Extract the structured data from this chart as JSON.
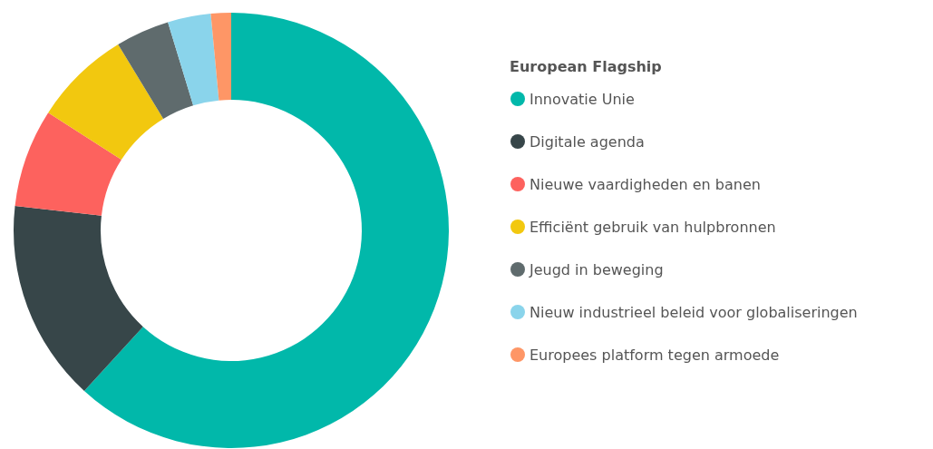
{
  "chart_data": {
    "type": "donut",
    "legend_title": "European Flagship",
    "legend": "right",
    "categories": [
      "Innovatie Unie",
      "Digitale agenda",
      "Nieuwe vaardigheden en banen",
      "Efficiënt gebruik van hulpbronnen",
      "Jeugd in beweging",
      "Nieuw industrieel beleid voor globaliseringen",
      "Europees platform tegen armoede"
    ],
    "values": [
      61.8,
      15,
      7.3,
      7.2,
      4,
      3.2,
      1.5
    ],
    "colors": [
      "#01b8aa",
      "#374649",
      "#fd625e",
      "#f2c80f",
      "#5f6b6d",
      "#8ad4eb",
      "#fe9666"
    ]
  }
}
